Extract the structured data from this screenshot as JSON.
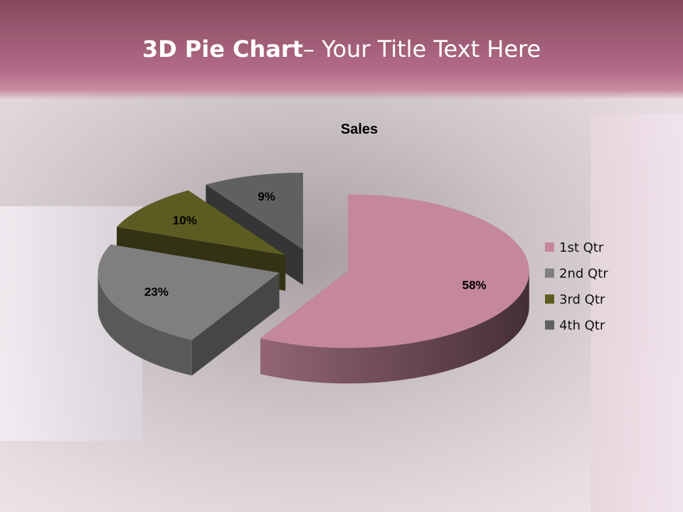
{
  "slide": {
    "title_bold": "3D Pie Chart",
    "title_rest": "– Your Title Text Here"
  },
  "chart_data": {
    "type": "pie",
    "title": "Sales",
    "categories": [
      "1st Qtr",
      "2nd Qtr",
      "3rd Qtr",
      "4th Qtr"
    ],
    "values": [
      58,
      23,
      10,
      9
    ],
    "data_labels": [
      "58%",
      "23%",
      "10%",
      "9%"
    ],
    "colors": [
      "#c4879c",
      "#7f7f7f",
      "#5c5c22",
      "#606060"
    ],
    "three_d": true,
    "exploded": true,
    "legend_position": "right"
  }
}
